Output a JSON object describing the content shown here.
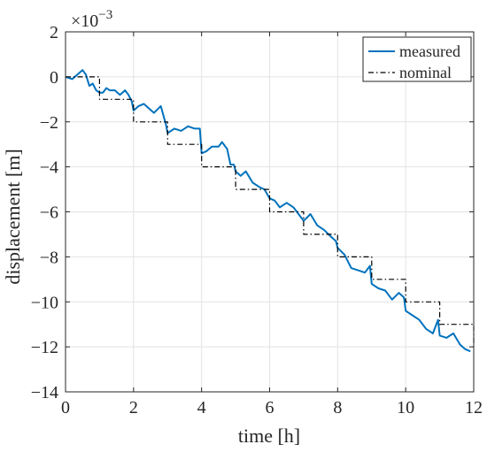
{
  "chart_data": {
    "type": "line",
    "title": "",
    "xlabel": "time [h]",
    "ylabel": "displacement [m]",
    "y_exponent_label": "×10",
    "y_exponent_power": "−3",
    "xlim": [
      0,
      12
    ],
    "ylim": [
      -14,
      2
    ],
    "x_ticks": [
      0,
      2,
      4,
      6,
      8,
      10,
      12
    ],
    "y_ticks": [
      -14,
      -12,
      -10,
      -8,
      -6,
      -4,
      -2,
      0,
      2
    ],
    "x_tick_labels": [
      "0",
      "2",
      "4",
      "6",
      "8",
      "10",
      "12"
    ],
    "y_tick_labels": [
      "−14",
      "−12",
      "−10",
      "−8",
      "−6",
      "−4",
      "−2",
      "0",
      "2"
    ],
    "grid": true,
    "legend_position": "top-right",
    "series": [
      {
        "name": "measured",
        "color": "#0072BD",
        "style": "solid",
        "x": [
          0,
          0.2,
          0.35,
          0.5,
          0.6,
          0.7,
          0.8,
          0.9,
          1.0,
          1.1,
          1.2,
          1.3,
          1.45,
          1.6,
          1.75,
          1.85,
          1.95,
          2.0,
          2.15,
          2.3,
          2.45,
          2.6,
          2.8,
          2.95,
          3.0,
          3.2,
          3.4,
          3.6,
          3.8,
          3.95,
          4.0,
          4.15,
          4.3,
          4.5,
          4.6,
          4.75,
          4.85,
          4.95,
          5.0,
          5.15,
          5.3,
          5.5,
          5.7,
          5.85,
          6.0,
          6.15,
          6.3,
          6.5,
          6.7,
          6.85,
          7.0,
          7.2,
          7.4,
          7.6,
          7.8,
          7.95,
          8.0,
          8.2,
          8.4,
          8.6,
          8.8,
          8.95,
          9.0,
          9.2,
          9.4,
          9.6,
          9.8,
          9.95,
          10.0,
          10.2,
          10.4,
          10.6,
          10.8,
          10.95,
          11.0,
          11.2,
          11.4,
          11.6,
          11.75,
          11.9
        ],
        "y": [
          0,
          -0.1,
          0.1,
          0.3,
          0.1,
          -0.4,
          -0.3,
          -0.6,
          -0.7,
          -0.7,
          -0.5,
          -0.6,
          -0.6,
          -0.8,
          -0.6,
          -0.8,
          -1.1,
          -1.5,
          -1.3,
          -1.2,
          -1.4,
          -1.6,
          -1.3,
          -2.1,
          -2.5,
          -2.3,
          -2.4,
          -2.2,
          -2.3,
          -2.3,
          -3.4,
          -3.3,
          -3.1,
          -3.1,
          -2.9,
          -3.2,
          -3.9,
          -3.9,
          -4.2,
          -4.4,
          -4.2,
          -4.7,
          -4.9,
          -5.0,
          -5.4,
          -5.5,
          -5.8,
          -5.6,
          -5.8,
          -6.1,
          -6.4,
          -6.1,
          -6.6,
          -6.8,
          -7.1,
          -7.3,
          -7.6,
          -7.9,
          -8.5,
          -8.6,
          -8.7,
          -8.4,
          -9.2,
          -9.4,
          -9.5,
          -9.9,
          -9.6,
          -9.8,
          -10.4,
          -10.6,
          -10.8,
          -11.2,
          -11.4,
          -10.8,
          -11.5,
          -11.6,
          -11.4,
          -11.9,
          -12.1,
          -12.2
        ]
      },
      {
        "name": "nominal",
        "color": "#000000",
        "style": "dashdot",
        "x": [
          0,
          1,
          1,
          2,
          2,
          3,
          3,
          4,
          4,
          5,
          5,
          6,
          6,
          7,
          7,
          8,
          8,
          9,
          9,
          10,
          10,
          11,
          11,
          12,
          12
        ],
        "y": [
          0,
          0,
          -1,
          -1,
          -2,
          -2,
          -3,
          -3,
          -4,
          -4,
          -5,
          -5,
          -6,
          -6,
          -7,
          -7,
          -8,
          -8,
          -9,
          -9,
          -10,
          -10,
          -11,
          -11,
          -12
        ]
      }
    ]
  }
}
